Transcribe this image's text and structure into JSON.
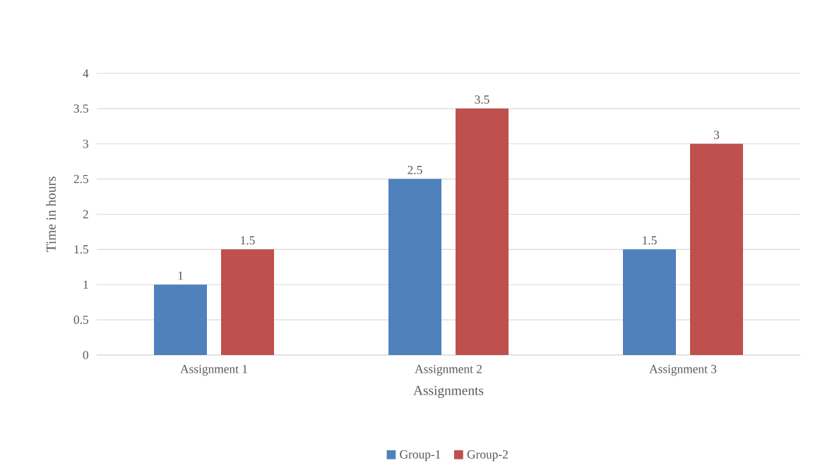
{
  "chart_data": {
    "type": "bar",
    "xlabel": "Assignments",
    "ylabel": "Time in hours",
    "categories": [
      "Assignment 1",
      "Assignment 2",
      "Assignment 3"
    ],
    "series": [
      {
        "name": "Group-1",
        "color": "#4f81bd",
        "values": [
          1,
          2.5,
          1.5
        ]
      },
      {
        "name": "Group-2",
        "color": "#c0504d",
        "values": [
          1.5,
          3.5,
          3
        ]
      }
    ],
    "ylim": [
      0,
      4
    ],
    "yticks": [
      0,
      0.5,
      1,
      1.5,
      2,
      2.5,
      3,
      3.5,
      4
    ],
    "grid": "y",
    "legend": "bottom",
    "data_labels": true
  }
}
